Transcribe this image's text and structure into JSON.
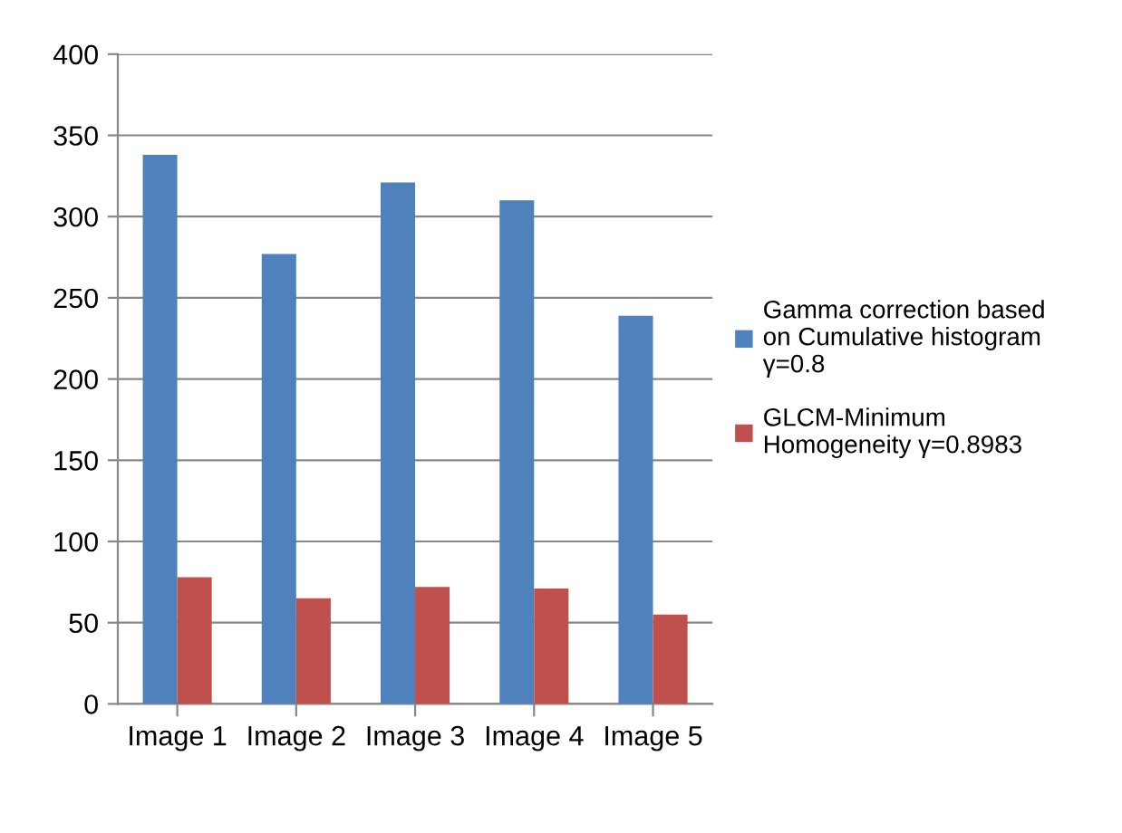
{
  "chart_data": {
    "type": "bar",
    "categories": [
      "Image 1",
      "Image 2",
      "Image 3",
      "Image 4",
      "Image 5"
    ],
    "series": [
      {
        "name": "Gamma correction based\non Cumulative histogram\nγ=0.8",
        "color": "#4f81bd",
        "values": [
          338,
          277,
          321,
          310,
          239
        ]
      },
      {
        "name": "GLCM-Minimum\nHomogeneity γ=0.8983",
        "color": "#c0504d",
        "values": [
          78,
          65,
          72,
          71,
          55
        ]
      }
    ],
    "ylim": [
      0,
      400
    ],
    "yticks": [
      0,
      50,
      100,
      150,
      200,
      250,
      300,
      350,
      400
    ],
    "grid": "y",
    "legend": "right"
  }
}
